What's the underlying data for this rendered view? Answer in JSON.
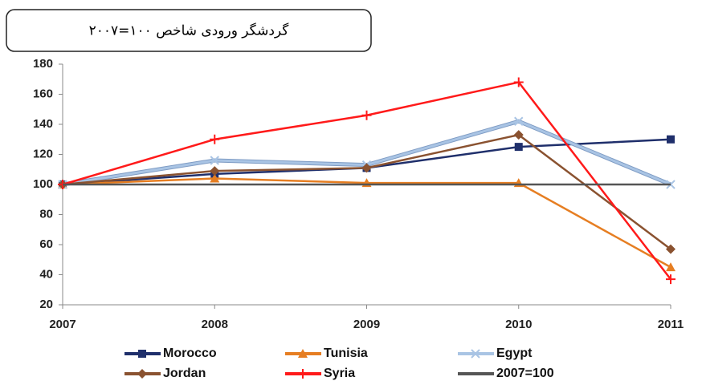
{
  "chart_data": {
    "type": "line",
    "title": "گردشگر ورودی شاخص ۱۰۰=۲۰۰۷",
    "categories": [
      "2007",
      "2008",
      "2009",
      "2010",
      "2011"
    ],
    "ylim": [
      20,
      180
    ],
    "yticks": [
      20,
      40,
      60,
      80,
      100,
      120,
      140,
      160,
      180
    ],
    "series": [
      {
        "name": "Morocco",
        "color": "#1f2f6b",
        "marker": "square",
        "values": [
          100,
          107,
          111,
          125,
          130
        ]
      },
      {
        "name": "Tunisia",
        "color": "#e67e22",
        "marker": "triangle",
        "values": [
          100,
          104,
          101,
          101,
          45
        ]
      },
      {
        "name": "Egypt",
        "color": "#a9c4e4",
        "marker": "x",
        "values": [
          100,
          116,
          113,
          142,
          100
        ]
      },
      {
        "name": "Jordan",
        "color": "#8a5230",
        "marker": "diamond",
        "values": [
          100,
          109,
          111,
          133,
          57
        ]
      },
      {
        "name": "Syria",
        "color": "#ff1a1a",
        "marker": "plus",
        "values": [
          100,
          130,
          146,
          168,
          37
        ]
      },
      {
        "name": "2007=100",
        "color": "#555555",
        "marker": "none",
        "values": [
          100,
          100,
          100,
          100,
          100
        ]
      }
    ]
  }
}
